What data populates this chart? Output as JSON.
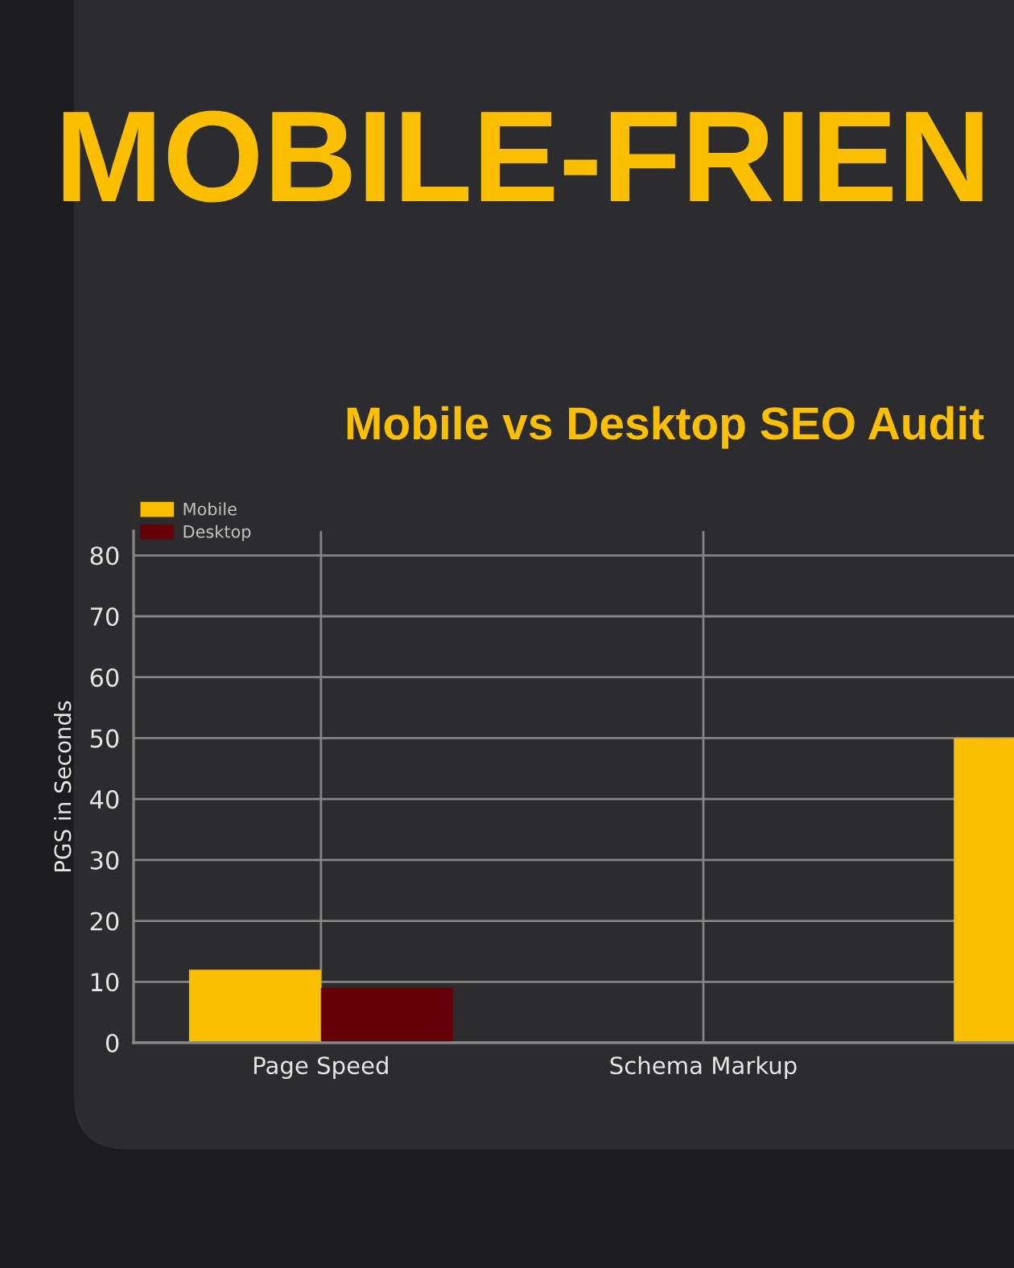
{
  "chart_data": {
    "type": "bar",
    "title": "MOBILE-FRIEN",
    "subtitle": "Mobile vs Desktop SEO Audit",
    "ylabel": "PGS in Seconds",
    "categories": [
      "Page Speed",
      "Schema Markup",
      null
    ],
    "series": [
      {
        "name": "Mobile",
        "color": "#fbbf00",
        "values": [
          12,
          null,
          50
        ]
      },
      {
        "name": "Desktop",
        "color": "#660008",
        "values": [
          9,
          null,
          null
        ]
      }
    ],
    "ylim": [
      0,
      84
    ],
    "yticks": [
      0,
      10,
      20,
      30,
      40,
      50,
      60,
      70,
      80
    ],
    "grid": true,
    "legend": "top left"
  }
}
